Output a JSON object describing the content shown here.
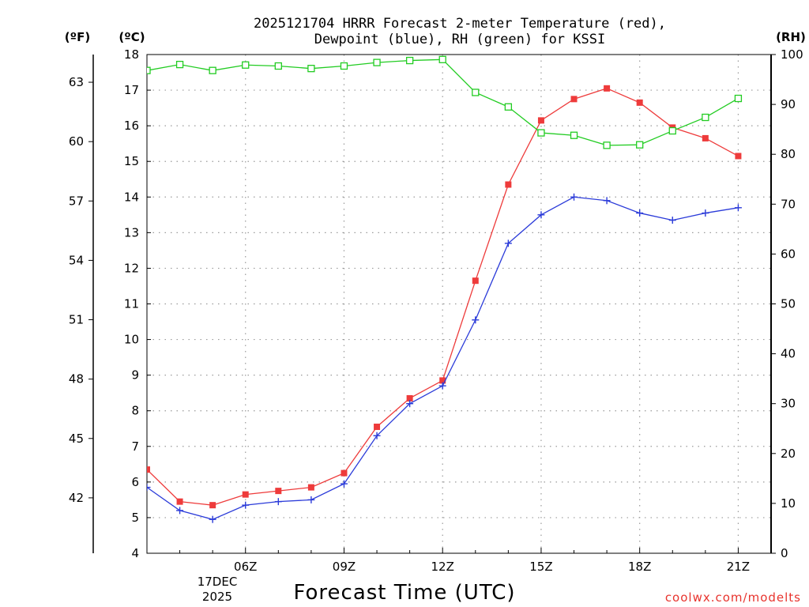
{
  "chart_data": {
    "type": "line",
    "title_lines": [
      "2025121704 HRRR Forecast 2-meter Temperature (red),",
      "Dewpoint (blue), RH (green) for KSSI"
    ],
    "xlabel": "Forecast Time (UTC)",
    "credit": "coolwx.com/modelts",
    "units": {
      "fahrenheit": "(ºF)",
      "celsius": "(ºC)",
      "rh": "(RH)"
    },
    "x_hours": [
      3,
      4,
      5,
      6,
      7,
      8,
      9,
      10,
      11,
      12,
      13,
      14,
      15,
      16,
      17,
      18,
      19,
      20,
      21,
      22
    ],
    "xlim": [
      3,
      22
    ],
    "x_ticks": [
      {
        "hour": 6,
        "label": "06Z"
      },
      {
        "hour": 9,
        "label": "09Z"
      },
      {
        "hour": 12,
        "label": "12Z"
      },
      {
        "hour": 15,
        "label": "15Z"
      },
      {
        "hour": 18,
        "label": "18Z"
      },
      {
        "hour": 21,
        "label": "21Z"
      }
    ],
    "date_label": [
      "17DEC",
      "2025"
    ],
    "y_celsius_lim": [
      4,
      18
    ],
    "y_celsius_ticks": [
      4,
      5,
      6,
      7,
      8,
      9,
      10,
      11,
      12,
      13,
      14,
      15,
      16,
      17,
      18
    ],
    "y_fahrenheit_ticks": [
      42,
      45,
      48,
      51,
      54,
      57,
      60,
      63
    ],
    "y_rh_lim": [
      0,
      100
    ],
    "y_rh_ticks": [
      0,
      10,
      20,
      30,
      40,
      50,
      60,
      70,
      80,
      90,
      100
    ],
    "series": [
      {
        "name": "Temperature",
        "axis": "celsius",
        "color": "#ee3b3b",
        "marker": "filled-square",
        "values": [
          6.35,
          5.45,
          5.35,
          5.65,
          5.75,
          5.85,
          6.25,
          7.55,
          8.35,
          8.85,
          11.65,
          14.35,
          16.15,
          16.75,
          17.05,
          16.65,
          15.95,
          15.65,
          15.15,
          null
        ]
      },
      {
        "name": "Dewpoint",
        "axis": "celsius",
        "color": "#2b3bd9",
        "marker": "plus",
        "values": [
          5.85,
          5.2,
          4.95,
          5.35,
          5.45,
          5.5,
          5.95,
          7.3,
          8.2,
          8.7,
          10.55,
          12.7,
          13.5,
          14.0,
          13.9,
          13.55,
          13.35,
          13.55,
          13.7,
          null
        ]
      },
      {
        "name": "RH",
        "axis": "rh",
        "color": "#22cc22",
        "marker": "open-square",
        "values": [
          96.8,
          98.0,
          96.8,
          97.9,
          97.7,
          97.2,
          97.7,
          98.4,
          98.8,
          99.0,
          92.4,
          89.5,
          84.3,
          83.8,
          81.8,
          81.9,
          84.7,
          87.4,
          91.2,
          null
        ]
      }
    ]
  }
}
